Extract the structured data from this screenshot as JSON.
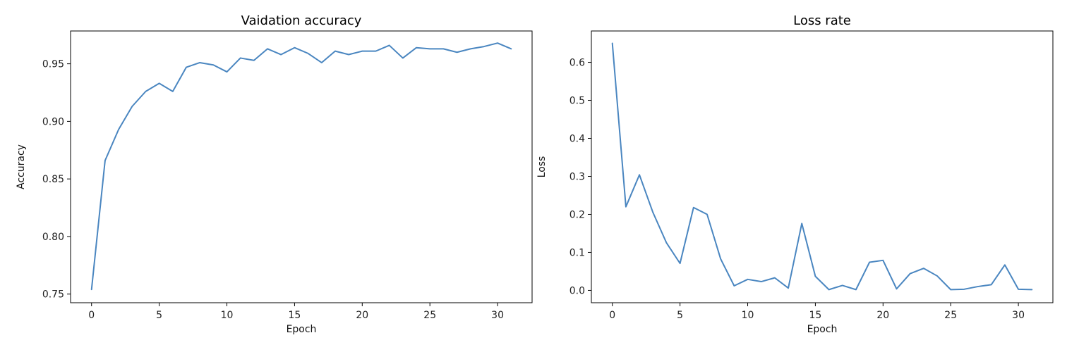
{
  "chart_data": [
    {
      "type": "line",
      "title": "Vaidation accuracy",
      "xlabel": "Epoch",
      "ylabel": "Accuracy",
      "xlim": [
        -1.55,
        32.55
      ],
      "ylim": [
        0.7425,
        0.9785
      ],
      "xticks": [
        0,
        5,
        10,
        15,
        20,
        25,
        30
      ],
      "yticks": [
        0.75,
        0.8,
        0.85,
        0.9,
        0.95
      ],
      "ytick_labels": [
        "0.75",
        "0.80",
        "0.85",
        "0.90",
        "0.95"
      ],
      "grid": false,
      "series": [
        {
          "color": "#4a86c0",
          "x": [
            0,
            1,
            2,
            3,
            4,
            5,
            6,
            7,
            8,
            9,
            10,
            11,
            12,
            13,
            14,
            15,
            16,
            17,
            18,
            19,
            20,
            21,
            22,
            23,
            24,
            25,
            26,
            27,
            28,
            29,
            30,
            31
          ],
          "y": [
            0.754,
            0.866,
            0.893,
            0.913,
            0.926,
            0.933,
            0.926,
            0.947,
            0.951,
            0.949,
            0.943,
            0.955,
            0.953,
            0.963,
            0.958,
            0.964,
            0.959,
            0.951,
            0.961,
            0.958,
            0.961,
            0.961,
            0.966,
            0.955,
            0.964,
            0.963,
            0.963,
            0.96,
            0.963,
            0.965,
            0.968,
            0.963
          ]
        }
      ]
    },
    {
      "type": "line",
      "title": "Loss rate",
      "xlabel": "Epoch",
      "ylabel": "Loss",
      "xlim": [
        -1.55,
        32.55
      ],
      "ylim": [
        -0.0325,
        0.6825
      ],
      "xticks": [
        0,
        5,
        10,
        15,
        20,
        25,
        30
      ],
      "yticks": [
        0.0,
        0.1,
        0.2,
        0.3,
        0.4,
        0.5,
        0.6
      ],
      "ytick_labels": [
        "0.0",
        "0.1",
        "0.2",
        "0.3",
        "0.4",
        "0.5",
        "0.6"
      ],
      "grid": false,
      "series": [
        {
          "color": "#4a86c0",
          "x": [
            0,
            1,
            2,
            3,
            4,
            5,
            6,
            7,
            8,
            9,
            10,
            11,
            12,
            13,
            14,
            15,
            16,
            17,
            18,
            19,
            20,
            21,
            22,
            23,
            24,
            25,
            26,
            27,
            28,
            29,
            30,
            31
          ],
          "y": [
            0.65,
            0.22,
            0.304,
            0.205,
            0.125,
            0.071,
            0.218,
            0.2,
            0.083,
            0.012,
            0.029,
            0.023,
            0.033,
            0.006,
            0.176,
            0.037,
            0.002,
            0.013,
            0.002,
            0.074,
            0.079,
            0.004,
            0.044,
            0.058,
            0.038,
            0.002,
            0.003,
            0.01,
            0.015,
            0.067,
            0.003,
            0.002
          ]
        }
      ]
    }
  ]
}
